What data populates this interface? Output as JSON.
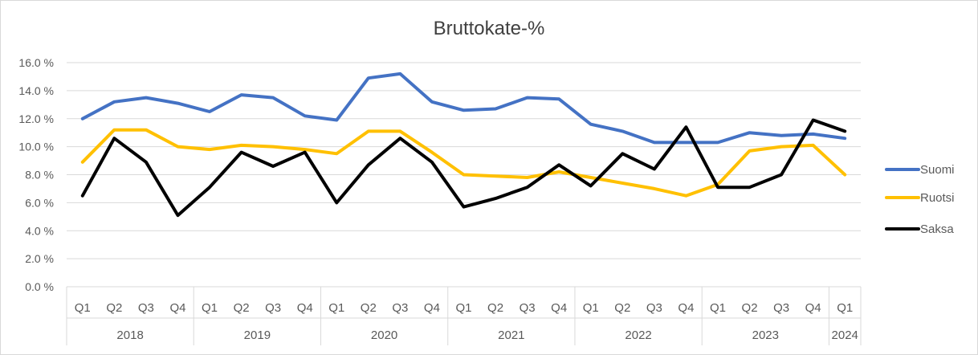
{
  "chart_data": {
    "type": "line",
    "title": "Bruttokate-%",
    "xlabel": "",
    "ylabel": "",
    "ylim": [
      0,
      16
    ],
    "y_tick_labels": [
      "0.0 %",
      "2.0 %",
      "4.0 %",
      "6.0 %",
      "8.0 %",
      "10.0 %",
      "12.0 %",
      "14.0 %",
      "16.0 %"
    ],
    "grid": true,
    "legend_position": "right",
    "groups": [
      {
        "label": "2018",
        "quarters": [
          "Q1",
          "Q2",
          "Q3",
          "Q4"
        ]
      },
      {
        "label": "2019",
        "quarters": [
          "Q1",
          "Q2",
          "Q3",
          "Q4"
        ]
      },
      {
        "label": "2020",
        "quarters": [
          "Q1",
          "Q2",
          "Q3",
          "Q4"
        ]
      },
      {
        "label": "2021",
        "quarters": [
          "Q1",
          "Q2",
          "Q3",
          "Q4"
        ]
      },
      {
        "label": "2022",
        "quarters": [
          "Q1",
          "Q2",
          "Q3",
          "Q4"
        ]
      },
      {
        "label": "2023",
        "quarters": [
          "Q1",
          "Q2",
          "Q3",
          "Q4"
        ]
      },
      {
        "label": "2024",
        "quarters": [
          "Q1"
        ]
      }
    ],
    "series": [
      {
        "name": "Suomi",
        "color": "#4472c4",
        "values": [
          12.0,
          13.2,
          13.5,
          13.1,
          12.5,
          13.7,
          13.5,
          12.2,
          11.9,
          14.9,
          15.2,
          13.2,
          12.6,
          12.7,
          13.5,
          13.4,
          11.6,
          11.1,
          10.3,
          10.3,
          10.3,
          11.0,
          10.8,
          10.9,
          10.6
        ]
      },
      {
        "name": "Ruotsi",
        "color": "#ffc000",
        "values": [
          8.9,
          11.2,
          11.2,
          10.0,
          9.8,
          10.1,
          10.0,
          9.8,
          9.5,
          11.1,
          11.1,
          9.6,
          8.0,
          7.9,
          7.8,
          8.2,
          7.8,
          7.4,
          7.0,
          6.5,
          7.3,
          9.7,
          10.0,
          10.1,
          8.0
        ]
      },
      {
        "name": "Saksa",
        "color": "#000000",
        "values": [
          6.5,
          10.6,
          8.9,
          5.1,
          7.1,
          9.6,
          8.6,
          9.6,
          6.0,
          8.7,
          10.6,
          8.9,
          5.7,
          6.3,
          7.1,
          8.7,
          7.2,
          9.5,
          8.4,
          11.4,
          7.1,
          7.1,
          8.0,
          11.9,
          11.1
        ]
      }
    ]
  }
}
